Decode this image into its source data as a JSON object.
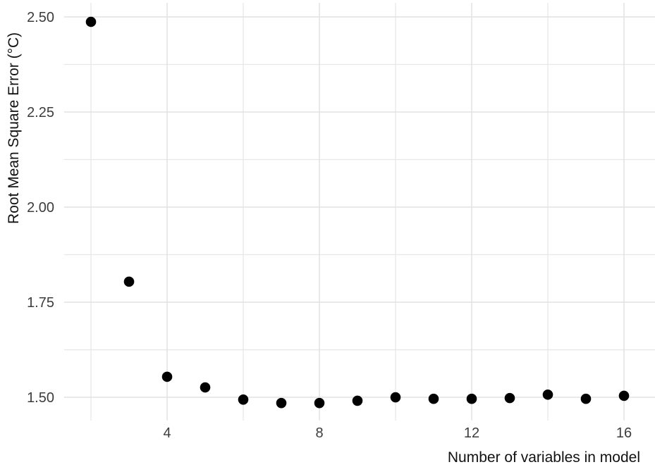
{
  "figure": {
    "background": "#ffffff"
  },
  "chart_data": {
    "type": "scatter",
    "title": "",
    "xlabel": "Number of variables in model",
    "ylabel": "Root Mean Square Error (°C)",
    "x": [
      2,
      3,
      4,
      5,
      6,
      7,
      8,
      9,
      10,
      11,
      12,
      13,
      14,
      15,
      16
    ],
    "y": [
      2.487,
      1.804,
      1.554,
      1.526,
      1.494,
      1.485,
      1.485,
      1.491,
      1.5,
      1.496,
      1.496,
      1.498,
      1.507,
      1.496,
      1.504
    ],
    "xlim": [
      1.296,
      16.815
    ],
    "ylim": [
      1.439,
      2.537
    ],
    "x_major_ticks": [
      4,
      8,
      12,
      16
    ],
    "x_tick_labels": [
      "4",
      "8",
      "12",
      "16"
    ],
    "x_minor_gridlines": [
      2,
      6,
      10,
      14
    ],
    "y_major_ticks": [
      1.5,
      1.75,
      2.0,
      2.25,
      2.5
    ],
    "y_tick_labels": [
      "1.50",
      "1.75",
      "2.00",
      "2.25",
      "2.50"
    ],
    "y_minor_gridlines": [
      1.625,
      1.875,
      2.125,
      2.375
    ],
    "grid": true,
    "legend": "none",
    "point_color": "#000000",
    "point_radius": 7.3,
    "major_grid_color": "#e2e2e2",
    "minor_grid_color": "#e7e7e7",
    "tick_label_color": "#3c3c3c",
    "axis_title_color": "#111111"
  }
}
